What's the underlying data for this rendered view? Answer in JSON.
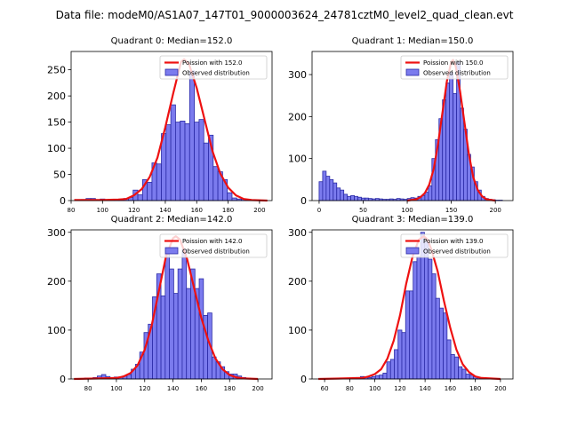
{
  "suptitle": "Data file: modeM0/AS1A07_147T01_9000003624_24781cztM0_level2_quad_clean.evt",
  "colors": {
    "bar_fill": "#7b7bee",
    "bar_edge": "#2b2ba6",
    "curve": "#ee1111"
  },
  "chart_data": [
    {
      "type": "bar",
      "title": "Quadrant 0: Median=152.0",
      "xlim": [
        80,
        208
      ],
      "ylim": [
        0,
        285
      ],
      "xticks": [
        80,
        100,
        120,
        140,
        160,
        180,
        200
      ],
      "yticks": [
        0,
        50,
        100,
        150,
        200,
        250
      ],
      "bin_width": 3,
      "bars": [
        [
          85,
          1
        ],
        [
          88,
          2
        ],
        [
          91,
          4
        ],
        [
          94,
          4
        ],
        [
          97,
          1
        ],
        [
          100,
          3
        ],
        [
          103,
          1
        ],
        [
          106,
          2
        ],
        [
          109,
          2
        ],
        [
          112,
          2
        ],
        [
          115,
          4
        ],
        [
          118,
          6
        ],
        [
          121,
          20
        ],
        [
          124,
          11
        ],
        [
          127,
          40
        ],
        [
          130,
          35
        ],
        [
          133,
          72
        ],
        [
          136,
          70
        ],
        [
          139,
          128
        ],
        [
          142,
          145
        ],
        [
          145,
          183
        ],
        [
          148,
          150
        ],
        [
          151,
          152
        ],
        [
          154,
          147
        ],
        [
          157,
          248
        ],
        [
          160,
          150
        ],
        [
          163,
          155
        ],
        [
          166,
          110
        ],
        [
          169,
          125
        ],
        [
          172,
          65
        ],
        [
          175,
          55
        ],
        [
          178,
          40
        ],
        [
          181,
          15
        ],
        [
          184,
          5
        ],
        [
          187,
          3
        ],
        [
          190,
          3
        ],
        [
          193,
          2
        ],
        [
          196,
          1
        ]
      ],
      "curve_label": "Poission with 152.0",
      "curve": [
        [
          82,
          1
        ],
        [
          100,
          1
        ],
        [
          110,
          2
        ],
        [
          115,
          3
        ],
        [
          120,
          10
        ],
        [
          125,
          22
        ],
        [
          130,
          45
        ],
        [
          135,
          82
        ],
        [
          140,
          140
        ],
        [
          145,
          205
        ],
        [
          150,
          265
        ],
        [
          152,
          270
        ],
        [
          155,
          262
        ],
        [
          160,
          215
        ],
        [
          165,
          155
        ],
        [
          170,
          95
        ],
        [
          175,
          52
        ],
        [
          180,
          25
        ],
        [
          185,
          10
        ],
        [
          190,
          3
        ],
        [
          195,
          1
        ],
        [
          205,
          0
        ]
      ],
      "legend": [
        "Poission with 152.0",
        "Observed distribution"
      ]
    },
    {
      "type": "bar",
      "title": "Quadrant 1: Median=150.0",
      "xlim": [
        -8,
        220
      ],
      "ylim": [
        0,
        355
      ],
      "xticks": [
        0,
        50,
        100,
        150,
        200
      ],
      "yticks": [
        0,
        100,
        200,
        300
      ],
      "bin_width": 4,
      "bars": [
        [
          2,
          45
        ],
        [
          6,
          70
        ],
        [
          10,
          58
        ],
        [
          14,
          50
        ],
        [
          18,
          42
        ],
        [
          22,
          30
        ],
        [
          26,
          25
        ],
        [
          30,
          15
        ],
        [
          34,
          10
        ],
        [
          38,
          12
        ],
        [
          42,
          10
        ],
        [
          46,
          8
        ],
        [
          50,
          6
        ],
        [
          54,
          6
        ],
        [
          58,
          5
        ],
        [
          62,
          4
        ],
        [
          66,
          5
        ],
        [
          70,
          4
        ],
        [
          74,
          3
        ],
        [
          78,
          3
        ],
        [
          82,
          4
        ],
        [
          86,
          3
        ],
        [
          90,
          5
        ],
        [
          94,
          4
        ],
        [
          98,
          3
        ],
        [
          102,
          5
        ],
        [
          106,
          7
        ],
        [
          110,
          6
        ],
        [
          114,
          10
        ],
        [
          118,
          12
        ],
        [
          122,
          20
        ],
        [
          126,
          35
        ],
        [
          130,
          100
        ],
        [
          134,
          145
        ],
        [
          138,
          195
        ],
        [
          142,
          240
        ],
        [
          146,
          280
        ],
        [
          150,
          305
        ],
        [
          154,
          255
        ],
        [
          158,
          330
        ],
        [
          162,
          220
        ],
        [
          166,
          170
        ],
        [
          170,
          110
        ],
        [
          174,
          80
        ],
        [
          178,
          45
        ],
        [
          182,
          25
        ],
        [
          186,
          10
        ],
        [
          190,
          5
        ],
        [
          194,
          3
        ],
        [
          198,
          2
        ],
        [
          202,
          1
        ],
        [
          206,
          1
        ]
      ],
      "curve_label": "Poission with 150.0",
      "curve": [
        [
          100,
          0
        ],
        [
          110,
          3
        ],
        [
          115,
          8
        ],
        [
          120,
          18
        ],
        [
          125,
          38
        ],
        [
          130,
          75
        ],
        [
          135,
          135
        ],
        [
          140,
          210
        ],
        [
          145,
          285
        ],
        [
          150,
          330
        ],
        [
          152,
          335
        ],
        [
          155,
          320
        ],
        [
          160,
          260
        ],
        [
          165,
          185
        ],
        [
          170,
          110
        ],
        [
          175,
          55
        ],
        [
          180,
          25
        ],
        [
          185,
          10
        ],
        [
          190,
          3
        ],
        [
          200,
          0
        ]
      ],
      "legend": [
        "Poission with 150.0",
        "Observed distribution"
      ]
    },
    {
      "type": "bar",
      "title": "Quadrant 2: Median=142.0",
      "xlim": [
        68,
        210
      ],
      "ylim": [
        0,
        305
      ],
      "xticks": [
        80,
        100,
        120,
        140,
        160,
        180,
        200
      ],
      "yticks": [
        0,
        100,
        200,
        300
      ],
      "bin_width": 3,
      "bars": [
        [
          73,
          1
        ],
        [
          76,
          1
        ],
        [
          79,
          2
        ],
        [
          82,
          2
        ],
        [
          85,
          3
        ],
        [
          88,
          6
        ],
        [
          91,
          9
        ],
        [
          94,
          5
        ],
        [
          97,
          3
        ],
        [
          100,
          4
        ],
        [
          103,
          4
        ],
        [
          106,
          6
        ],
        [
          109,
          9
        ],
        [
          112,
          20
        ],
        [
          115,
          30
        ],
        [
          118,
          55
        ],
        [
          121,
          95
        ],
        [
          124,
          112
        ],
        [
          127,
          168
        ],
        [
          130,
          215
        ],
        [
          133,
          170
        ],
        [
          136,
          255
        ],
        [
          139,
          225
        ],
        [
          142,
          175
        ],
        [
          145,
          225
        ],
        [
          148,
          265
        ],
        [
          151,
          185
        ],
        [
          154,
          225
        ],
        [
          157,
          185
        ],
        [
          160,
          205
        ],
        [
          163,
          130
        ],
        [
          166,
          135
        ],
        [
          169,
          45
        ],
        [
          172,
          35
        ],
        [
          175,
          25
        ],
        [
          178,
          15
        ],
        [
          181,
          10
        ],
        [
          184,
          10
        ],
        [
          187,
          6
        ],
        [
          190,
          3
        ],
        [
          193,
          2
        ],
        [
          196,
          1
        ]
      ],
      "curve_label": "Poission with 142.0",
      "curve": [
        [
          70,
          0
        ],
        [
          100,
          2
        ],
        [
          105,
          5
        ],
        [
          110,
          12
        ],
        [
          115,
          28
        ],
        [
          120,
          60
        ],
        [
          125,
          110
        ],
        [
          130,
          180
        ],
        [
          135,
          250
        ],
        [
          140,
          288
        ],
        [
          142,
          292
        ],
        [
          145,
          285
        ],
        [
          150,
          245
        ],
        [
          155,
          185
        ],
        [
          160,
          125
        ],
        [
          165,
          78
        ],
        [
          170,
          42
        ],
        [
          175,
          20
        ],
        [
          180,
          8
        ],
        [
          185,
          3
        ],
        [
          190,
          1
        ],
        [
          200,
          0
        ]
      ],
      "legend": [
        "Poission with 142.0",
        "Observed distribution"
      ]
    },
    {
      "type": "bar",
      "title": "Quadrant 3: Median=139.0",
      "xlim": [
        50,
        210
      ],
      "ylim": [
        0,
        305
      ],
      "xticks": [
        60,
        80,
        100,
        120,
        140,
        160,
        180,
        200
      ],
      "yticks": [
        0,
        100,
        200,
        300
      ],
      "bin_width": 3,
      "bars": [
        [
          57,
          1
        ],
        [
          66,
          1
        ],
        [
          75,
          1
        ],
        [
          78,
          2
        ],
        [
          81,
          1
        ],
        [
          84,
          3
        ],
        [
          87,
          3
        ],
        [
          90,
          5
        ],
        [
          93,
          4
        ],
        [
          96,
          3
        ],
        [
          99,
          5
        ],
        [
          102,
          7
        ],
        [
          105,
          8
        ],
        [
          108,
          12
        ],
        [
          111,
          35
        ],
        [
          114,
          40
        ],
        [
          117,
          60
        ],
        [
          120,
          100
        ],
        [
          123,
          95
        ],
        [
          126,
          180
        ],
        [
          129,
          180
        ],
        [
          132,
          240
        ],
        [
          135,
          250
        ],
        [
          138,
          300
        ],
        [
          141,
          280
        ],
        [
          144,
          245
        ],
        [
          147,
          215
        ],
        [
          150,
          165
        ],
        [
          153,
          145
        ],
        [
          156,
          135
        ],
        [
          159,
          80
        ],
        [
          162,
          50
        ],
        [
          165,
          45
        ],
        [
          168,
          25
        ],
        [
          171,
          20
        ],
        [
          174,
          10
        ],
        [
          177,
          8
        ],
        [
          180,
          5
        ],
        [
          183,
          3
        ],
        [
          186,
          2
        ],
        [
          189,
          1
        ]
      ],
      "curve_label": "Poission with 139.0",
      "curve": [
        [
          55,
          0
        ],
        [
          90,
          2
        ],
        [
          95,
          5
        ],
        [
          100,
          10
        ],
        [
          105,
          20
        ],
        [
          110,
          42
        ],
        [
          115,
          78
        ],
        [
          120,
          130
        ],
        [
          125,
          195
        ],
        [
          130,
          250
        ],
        [
          135,
          285
        ],
        [
          139,
          292
        ],
        [
          142,
          285
        ],
        [
          145,
          265
        ],
        [
          150,
          220
        ],
        [
          155,
          160
        ],
        [
          160,
          105
        ],
        [
          165,
          60
        ],
        [
          170,
          30
        ],
        [
          175,
          14
        ],
        [
          180,
          5
        ],
        [
          185,
          2
        ],
        [
          200,
          0
        ]
      ],
      "legend": [
        "Poission with 139.0",
        "Observed distribution"
      ]
    }
  ]
}
